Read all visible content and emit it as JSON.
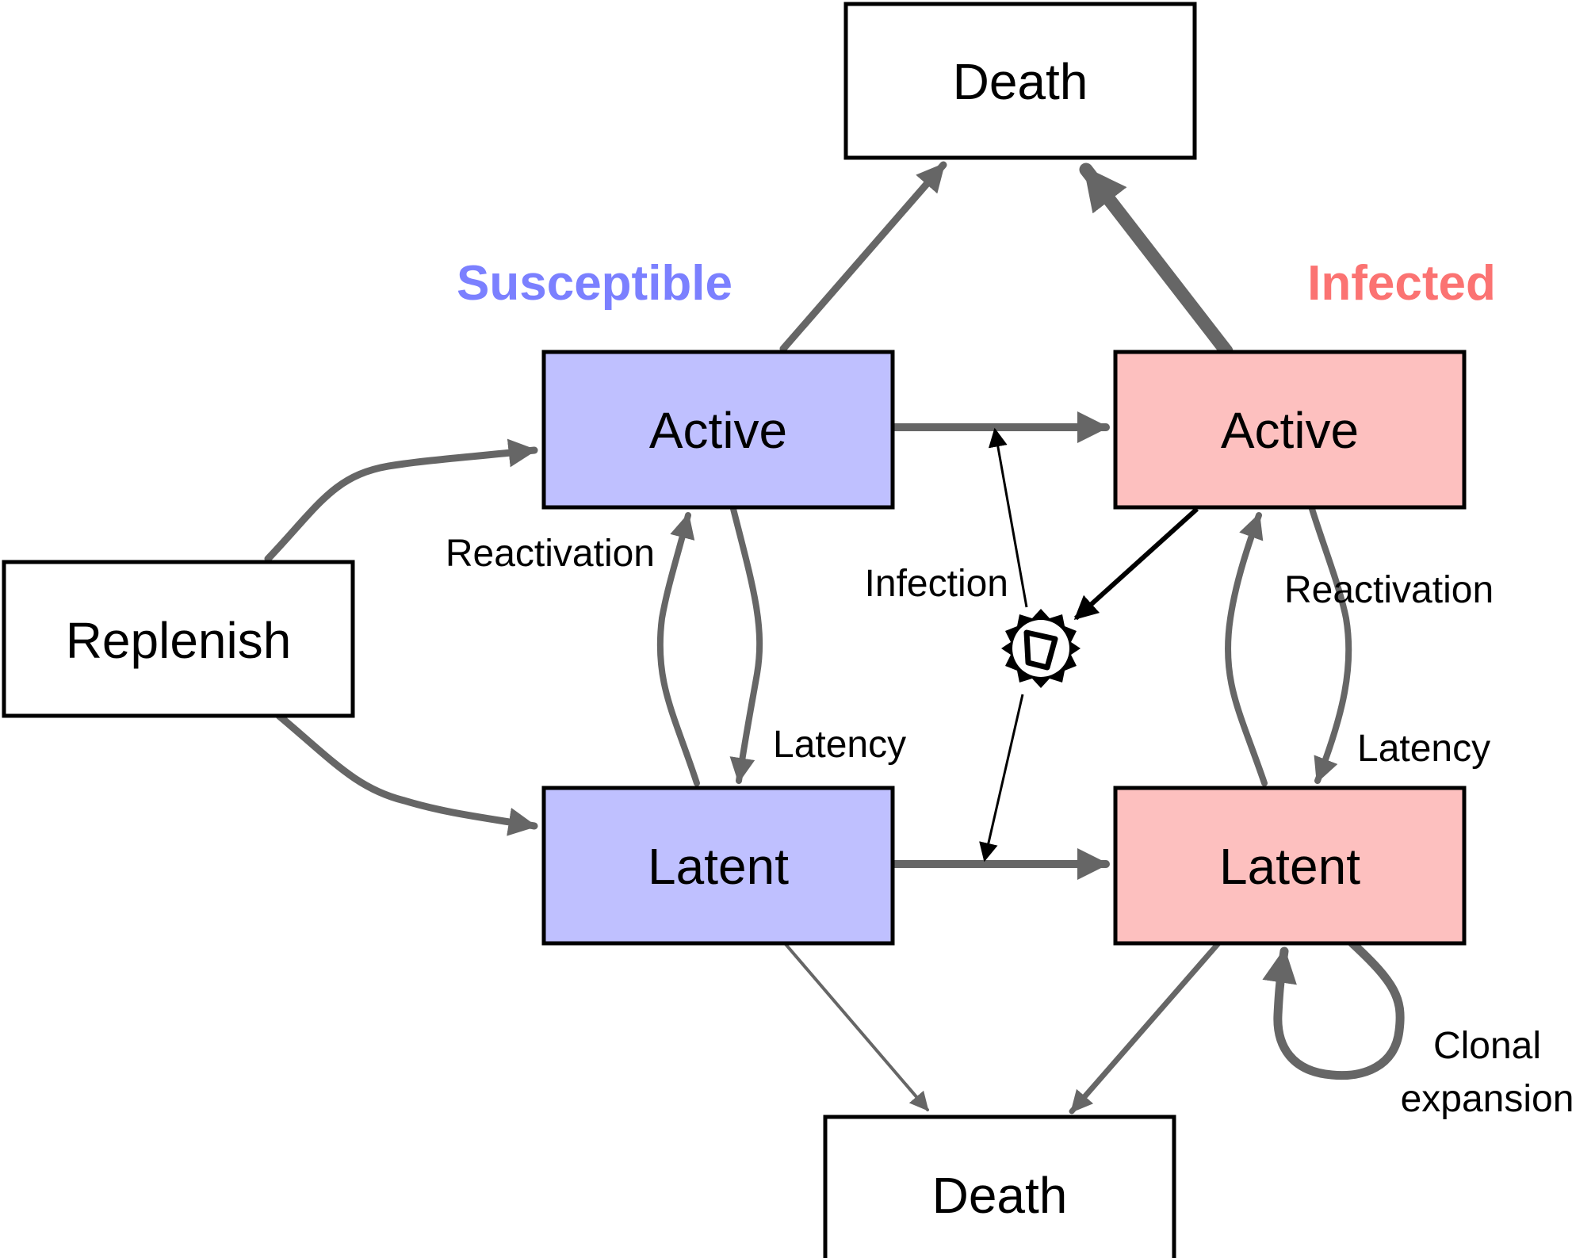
{
  "colors": {
    "susceptible": "#7b80ff",
    "infected": "#fb7372",
    "susceptible_fill": "#bfc0ff",
    "infected_fill": "#fdc0bf",
    "arrow": "#666666"
  },
  "groups": {
    "susceptible": "Susceptible",
    "infected": "Infected"
  },
  "boxes": {
    "death_top": "Death",
    "death_bottom": "Death",
    "susceptible_active": "Active",
    "susceptible_latent": "Latent",
    "infected_active": "Active",
    "infected_latent": "Latent",
    "replenish": "Replenish"
  },
  "labels": {
    "reactivation_left": "Reactivation",
    "latency_left": "Latency",
    "infection": "Infection",
    "reactivation_right": "Reactivation",
    "latency_right": "Latency",
    "clonal_line1": "Clonal",
    "clonal_line2": "expansion"
  },
  "icons": {
    "virus": "virus-icon"
  }
}
